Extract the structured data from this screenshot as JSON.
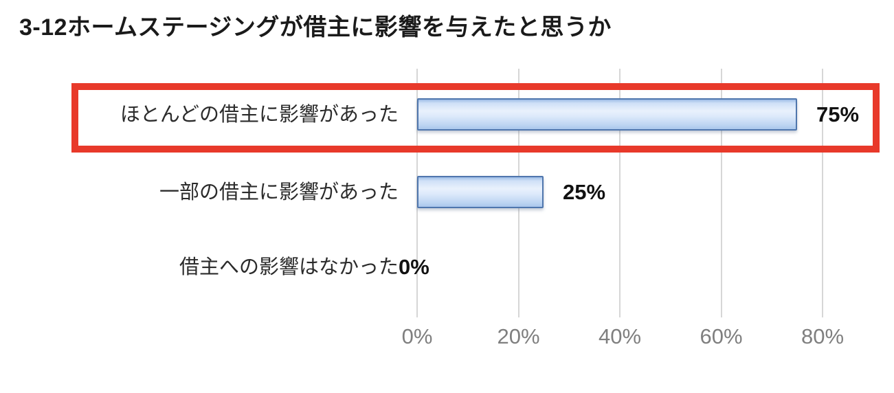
{
  "title": "3-12ホームステージングが借主に影響を与えたと思うか",
  "colors": {
    "bar_border": "#4f76ad",
    "bar_fill_light": "#e9f1fc",
    "bar_fill_dark": "#a9c7ec",
    "highlight_box": "#e8392a",
    "gridline": "#d6d6d6",
    "axis_label": "#7f7f7f",
    "title_text": "#1a1a1a"
  },
  "chart_data": {
    "type": "bar",
    "orientation": "horizontal",
    "title": "3-12ホームステージングが借主に影響を与えたと思うか",
    "categories": [
      "ほとんどの借主に影響があった",
      "一部の借主に影響があった",
      "借主への影響はなかった"
    ],
    "values": [
      75,
      25,
      0
    ],
    "value_labels": [
      "75%",
      "25%",
      "0%"
    ],
    "x_tick_labels": [
      "0%",
      "20%",
      "40%",
      "60%",
      "80%"
    ],
    "x_tick_values": [
      0,
      20,
      40,
      60,
      80
    ],
    "xlim": [
      0,
      90
    ],
    "grid": "vertical",
    "legend": "none",
    "highlighted_category_index": 0,
    "highlight_style": "red-outline-box"
  }
}
